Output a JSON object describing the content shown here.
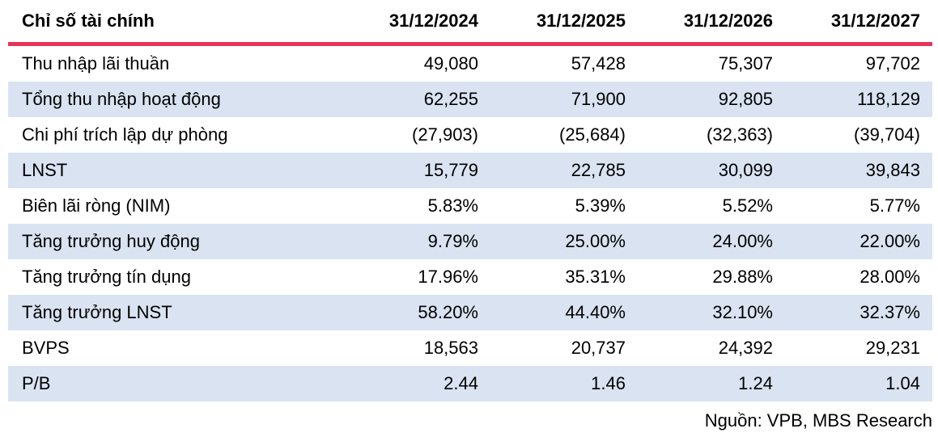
{
  "chart_data": {
    "type": "table",
    "header": {
      "label": "Chỉ số tài chính",
      "columns": [
        "31/12/2024",
        "31/12/2025",
        "31/12/2026",
        "31/12/2027"
      ]
    },
    "rows": [
      {
        "label": "Thu nhập lãi thuần",
        "values": [
          "49,080",
          "57,428",
          "75,307",
          "97,702"
        ]
      },
      {
        "label": "Tổng thu nhập hoạt động",
        "values": [
          "62,255",
          "71,900",
          "92,805",
          "118,129"
        ]
      },
      {
        "label": "Chi phí trích lập dự phòng",
        "values": [
          "(27,903)",
          "(25,684)",
          "(32,363)",
          "(39,704)"
        ]
      },
      {
        "label": "LNST",
        "values": [
          "15,779",
          "22,785",
          "30,099",
          "39,843"
        ]
      },
      {
        "label": "Biên lãi ròng (NIM)",
        "values": [
          "5.83%",
          "5.39%",
          "5.52%",
          "5.77%"
        ]
      },
      {
        "label": "Tăng trưởng huy động",
        "values": [
          "9.79%",
          "25.00%",
          "24.00%",
          "22.00%"
        ]
      },
      {
        "label": "Tăng trưởng tín dụng",
        "values": [
          "17.96%",
          "35.31%",
          "29.88%",
          "28.00%"
        ]
      },
      {
        "label": "Tăng trưởng LNST",
        "values": [
          "58.20%",
          "44.40%",
          "32.10%",
          "32.37%"
        ]
      },
      {
        "label": "BVPS",
        "values": [
          "18,563",
          "20,737",
          "24,392",
          "29,231"
        ]
      },
      {
        "label": "P/B",
        "values": [
          "2.44",
          "1.46",
          "1.24",
          "1.04"
        ]
      }
    ],
    "source": "Nguồn: VPB, MBS Research",
    "layout": {
      "striping": "alternate rows light blue",
      "numeric_alignment": "right"
    }
  },
  "colors": {
    "accent_rule": "#e7335a",
    "row_alt_bg": "#dae3f1",
    "text": "#000000",
    "background": "#ffffff"
  }
}
